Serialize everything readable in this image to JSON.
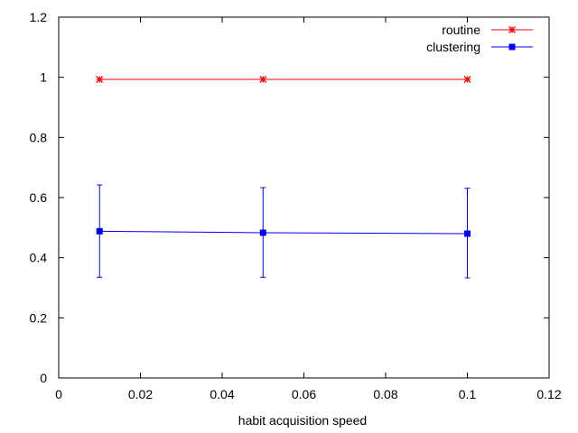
{
  "chart_data": {
    "type": "line",
    "title": "",
    "xlabel": "habit acquisition speed",
    "ylabel": "",
    "xlim": [
      0,
      0.12
    ],
    "ylim": [
      0,
      1.2
    ],
    "x_ticks": [
      0,
      0.02,
      0.04,
      0.06,
      0.08,
      0.1,
      0.12
    ],
    "x_tick_labels": [
      "0",
      "0.02",
      "0.04",
      "0.06",
      "0.08",
      "0.1",
      "0.12"
    ],
    "y_ticks": [
      0,
      0.2,
      0.4,
      0.6,
      0.8,
      1,
      1.2
    ],
    "y_tick_labels": [
      "0",
      "0.2",
      "0.4",
      "0.6",
      "0.8",
      "1",
      "1.2"
    ],
    "grid": false,
    "legend_position": "top-right",
    "series": [
      {
        "name": "routine",
        "color": "#ff0000",
        "marker": "star",
        "x": [
          0.01,
          0.05,
          0.1
        ],
        "y": [
          0.993,
          0.993,
          0.993
        ],
        "error": null
      },
      {
        "name": "clustering",
        "color": "#0000ff",
        "marker": "square",
        "x": [
          0.01,
          0.05,
          0.1
        ],
        "y": [
          0.488,
          0.483,
          0.48
        ],
        "error": [
          [
            0.335,
            0.642
          ],
          [
            0.335,
            0.633
          ],
          [
            0.333,
            0.631
          ]
        ]
      }
    ]
  }
}
